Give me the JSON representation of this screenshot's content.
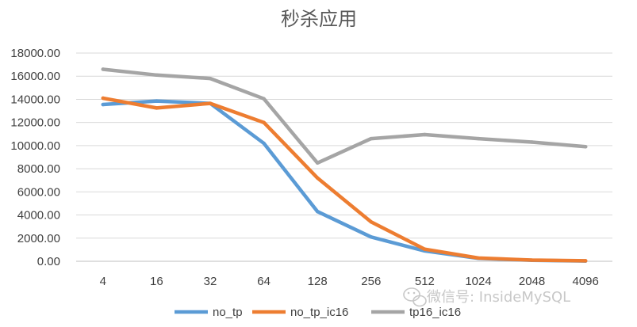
{
  "chart_data": {
    "type": "line",
    "title": "秒杀应用",
    "categories": [
      "4",
      "16",
      "32",
      "64",
      "128",
      "256",
      "512",
      "1024",
      "2048",
      "4096"
    ],
    "ylim": [
      0,
      18000
    ],
    "yticks": [
      "0.00",
      "2000.00",
      "4000.00",
      "6000.00",
      "8000.00",
      "10000.00",
      "12000.00",
      "14000.00",
      "16000.00",
      "18000.00"
    ],
    "grid": true,
    "legend_position": "bottom",
    "series": [
      {
        "name": "no_tp",
        "color": "#5b9bd5",
        "values": [
          13550,
          13850,
          13650,
          10200,
          4300,
          2100,
          900,
          250,
          80,
          30
        ]
      },
      {
        "name": "no_tp_ic16",
        "color": "#ed7d31",
        "values": [
          14100,
          13250,
          13650,
          12000,
          7200,
          3400,
          1050,
          280,
          100,
          40
        ]
      },
      {
        "name": "tp16_ic16",
        "color": "#a5a5a5",
        "values": [
          16600,
          16100,
          15800,
          14050,
          8500,
          10600,
          10950,
          10600,
          10300,
          9900
        ]
      }
    ]
  },
  "watermark": {
    "text": "微信号: InsideMySQL",
    "icon": "wechat-icon"
  }
}
